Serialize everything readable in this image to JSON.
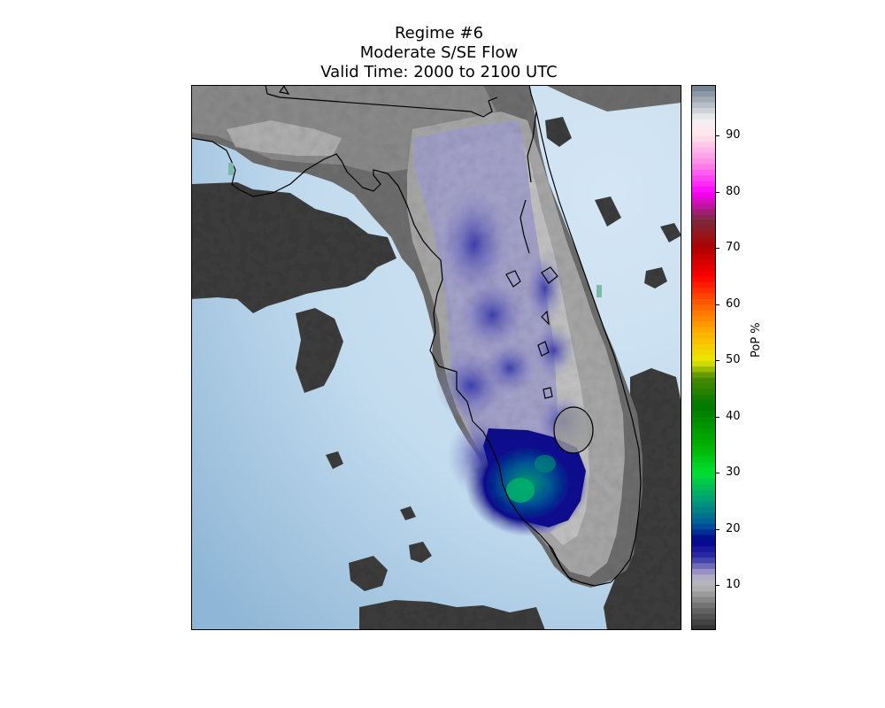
{
  "title": {
    "line1": "Regime #6",
    "line2": "Moderate S/SE Flow",
    "line3": "Valid Time: 2000 to 2100 UTC"
  },
  "map": {
    "region": "Florida",
    "field": "probability of precipitation",
    "ocean_colors": [
      "#8fb8d8",
      "#c9dff0"
    ],
    "land_low_pop_colors": [
      "#3a3a3a",
      "#5a5a5a",
      "#8a8a8a",
      "#b4b4b4",
      "#d8d8d8"
    ],
    "max_pop_area": "southwest Florida"
  },
  "colorbar": {
    "label": "PoP %",
    "min": 2,
    "max": 99,
    "ticks": [
      "10",
      "20",
      "30",
      "40",
      "50",
      "60",
      "70",
      "80",
      "90"
    ],
    "tick_values": [
      10,
      20,
      30,
      40,
      50,
      60,
      70,
      80,
      90
    ],
    "stops": [
      {
        "v": 2,
        "c": "#2c2c2c"
      },
      {
        "v": 6,
        "c": "#6a6a6a"
      },
      {
        "v": 10,
        "c": "#b8b8b8"
      },
      {
        "v": 12,
        "c": "#aaa6c8"
      },
      {
        "v": 15,
        "c": "#3030a8"
      },
      {
        "v": 18,
        "c": "#00008c"
      },
      {
        "v": 21,
        "c": "#005a9a"
      },
      {
        "v": 25,
        "c": "#009a7a"
      },
      {
        "v": 30,
        "c": "#00e030"
      },
      {
        "v": 35,
        "c": "#00b000"
      },
      {
        "v": 42,
        "c": "#007800"
      },
      {
        "v": 47,
        "c": "#4a8a00"
      },
      {
        "v": 50,
        "c": "#eaea00"
      },
      {
        "v": 55,
        "c": "#ffb000"
      },
      {
        "v": 60,
        "c": "#ff6000"
      },
      {
        "v": 65,
        "c": "#ff0000"
      },
      {
        "v": 70,
        "c": "#b00000"
      },
      {
        "v": 75,
        "c": "#7a2a3a"
      },
      {
        "v": 80,
        "c": "#ff00ff"
      },
      {
        "v": 85,
        "c": "#ff88e8"
      },
      {
        "v": 90,
        "c": "#ffe4ea"
      },
      {
        "v": 93,
        "c": "#f0f0f0"
      },
      {
        "v": 99,
        "c": "#6a7a8a"
      }
    ]
  }
}
